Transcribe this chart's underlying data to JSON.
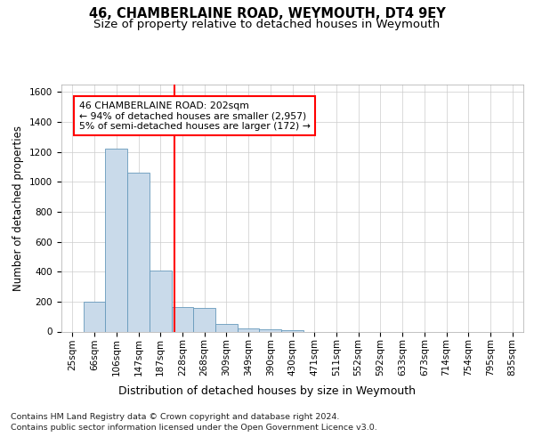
{
  "title": "46, CHAMBERLAINE ROAD, WEYMOUTH, DT4 9EY",
  "subtitle": "Size of property relative to detached houses in Weymouth",
  "xlabel": "Distribution of detached houses by size in Weymouth",
  "ylabel": "Number of detached properties",
  "footer_line1": "Contains HM Land Registry data © Crown copyright and database right 2024.",
  "footer_line2": "Contains public sector information licensed under the Open Government Licence v3.0.",
  "bin_labels": [
    "25sqm",
    "66sqm",
    "106sqm",
    "147sqm",
    "187sqm",
    "228sqm",
    "268sqm",
    "309sqm",
    "349sqm",
    "390sqm",
    "430sqm",
    "471sqm",
    "511sqm",
    "552sqm",
    "592sqm",
    "633sqm",
    "673sqm",
    "714sqm",
    "754sqm",
    "795sqm",
    "835sqm"
  ],
  "bar_values": [
    0,
    200,
    1220,
    1060,
    410,
    165,
    160,
    50,
    20,
    15,
    10,
    0,
    0,
    0,
    0,
    0,
    0,
    0,
    0,
    0,
    0
  ],
  "bar_color": "#c9daea",
  "bar_edge_color": "#6699bb",
  "property_line_x": 4.63,
  "annotation_text": "46 CHAMBERLAINE ROAD: 202sqm\n← 94% of detached houses are smaller (2,957)\n5% of semi-detached houses are larger (172) →",
  "annotation_box_color": "white",
  "annotation_box_edge": "red",
  "vline_color": "red",
  "ylim": [
    0,
    1650
  ],
  "yticks": [
    0,
    200,
    400,
    600,
    800,
    1000,
    1200,
    1400,
    1600
  ],
  "title_fontsize": 10.5,
  "subtitle_fontsize": 9.5,
  "ylabel_fontsize": 8.5,
  "xlabel_fontsize": 9,
  "tick_fontsize": 7.5,
  "annotation_fontsize": 7.8,
  "footer_fontsize": 6.8
}
